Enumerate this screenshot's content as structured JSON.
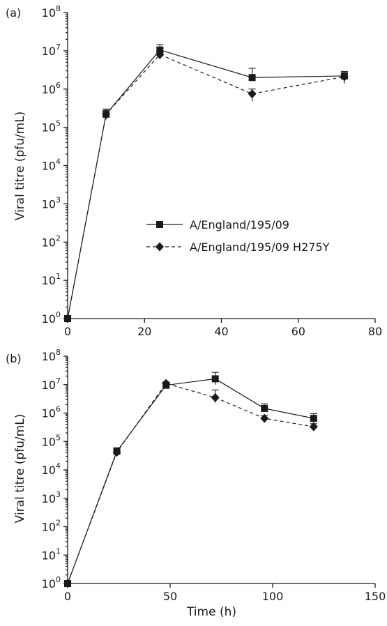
{
  "chart_data": [
    {
      "panel_label": "(a)",
      "type": "line",
      "ylabel": "Viral titre (pfu/mL)",
      "xlabel": "",
      "yscale": "log",
      "xlim": [
        0,
        80
      ],
      "ylim": [
        1,
        100000000
      ],
      "xticks": [
        0,
        20,
        40,
        60,
        80
      ],
      "yticks": [
        {
          "base": "10",
          "exp": "0"
        },
        {
          "base": "10",
          "exp": "1"
        },
        {
          "base": "10",
          "exp": "2"
        },
        {
          "base": "10",
          "exp": "3"
        },
        {
          "base": "10",
          "exp": "4"
        },
        {
          "base": "10",
          "exp": "5"
        },
        {
          "base": "10",
          "exp": "6"
        },
        {
          "base": "10",
          "exp": "7"
        },
        {
          "base": "10",
          "exp": "8"
        }
      ],
      "legend": {
        "position": "center-right"
      },
      "series": [
        {
          "name": "A/England/195/09",
          "marker": "square",
          "linestyle": "solid",
          "x": [
            0,
            10,
            24,
            48,
            72
          ],
          "y": [
            1,
            220000,
            10500000,
            2000000,
            2200000
          ],
          "err_low": [
            1,
            160000,
            7500000,
            1600000,
            1700000
          ],
          "err_high": [
            1,
            300000,
            14500000,
            3500000,
            2900000
          ]
        },
        {
          "name": "A/England/195/09 H275Y",
          "marker": "diamond",
          "linestyle": "dashed",
          "x": [
            0,
            10,
            24,
            48,
            72
          ],
          "y": [
            1,
            220000,
            8000000,
            750000,
            2100000
          ],
          "err_low": [
            1,
            170000,
            6000000,
            480000,
            1400000
          ],
          "err_high": [
            1,
            280000,
            10000000,
            1000000,
            2700000
          ]
        }
      ]
    },
    {
      "panel_label": "(b)",
      "type": "line",
      "ylabel": "Viral titre (pfu/mL)",
      "xlabel": "Time (h)",
      "yscale": "log",
      "xlim": [
        0,
        150
      ],
      "ylim": [
        1,
        100000000
      ],
      "xticks": [
        0,
        50,
        100,
        150
      ],
      "yticks": [
        {
          "base": "10",
          "exp": "0"
        },
        {
          "base": "10",
          "exp": "1"
        },
        {
          "base": "10",
          "exp": "2"
        },
        {
          "base": "10",
          "exp": "3"
        },
        {
          "base": "10",
          "exp": "4"
        },
        {
          "base": "10",
          "exp": "5"
        },
        {
          "base": "10",
          "exp": "6"
        },
        {
          "base": "10",
          "exp": "7"
        },
        {
          "base": "10",
          "exp": "8"
        }
      ],
      "series": [
        {
          "name": "A/England/195/09",
          "marker": "square",
          "linestyle": "solid",
          "x": [
            0,
            24,
            48,
            72,
            96,
            120
          ],
          "y": [
            1,
            45000,
            9500000,
            16000000,
            1450000,
            650000
          ],
          "err_low": [
            1,
            32000,
            8000000,
            10000000,
            1100000,
            480000
          ],
          "err_high": [
            1,
            60000,
            11000000,
            27000000,
            2100000,
            950000
          ]
        },
        {
          "name": "A/England/195/09 H275Y",
          "marker": "diamond",
          "linestyle": "dashed",
          "x": [
            0,
            24,
            48,
            72,
            96,
            120
          ],
          "y": [
            1,
            42000,
            11000000,
            3500000,
            650000,
            330000
          ],
          "err_low": [
            1,
            30000,
            9500000,
            2300000,
            520000,
            270000
          ],
          "err_high": [
            1,
            55000,
            12500000,
            6500000,
            800000,
            420000
          ]
        }
      ]
    }
  ]
}
